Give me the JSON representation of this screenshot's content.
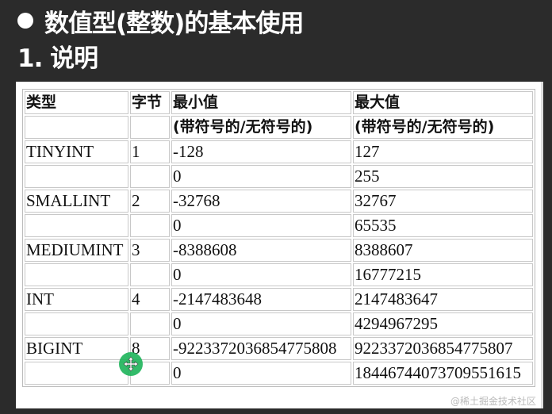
{
  "slide": {
    "title": "数值型(整数)的基本使用",
    "subtitle": "1. 说明"
  },
  "table": {
    "headers": [
      "类型",
      "字节",
      "最小值",
      "最大值"
    ],
    "subheaders": [
      "",
      "",
      "(带符号的/无符号的)",
      "(带符号的/无符号的)"
    ],
    "rows": [
      [
        "TINYINT",
        "1",
        "-128",
        "127"
      ],
      [
        "",
        "",
        "0",
        "255"
      ],
      [
        "SMALLINT",
        "2",
        "-32768",
        "32767"
      ],
      [
        "",
        "",
        "0",
        "65535"
      ],
      [
        "MEDIUMINT",
        "3",
        "-8388608",
        "8388607"
      ],
      [
        "",
        "",
        "0",
        "16777215"
      ],
      [
        "INT",
        "4",
        "-2147483648",
        "2147483647"
      ],
      [
        "",
        "",
        "0",
        "4294967295"
      ],
      [
        "BIGINT",
        "8",
        "-9223372036854775808",
        "9223372036854775807"
      ],
      [
        "",
        "",
        "0",
        "18446744073709551615"
      ]
    ]
  },
  "watermark": "@稀土掘金技术社区",
  "cursor_icon": "move-cursor-icon"
}
